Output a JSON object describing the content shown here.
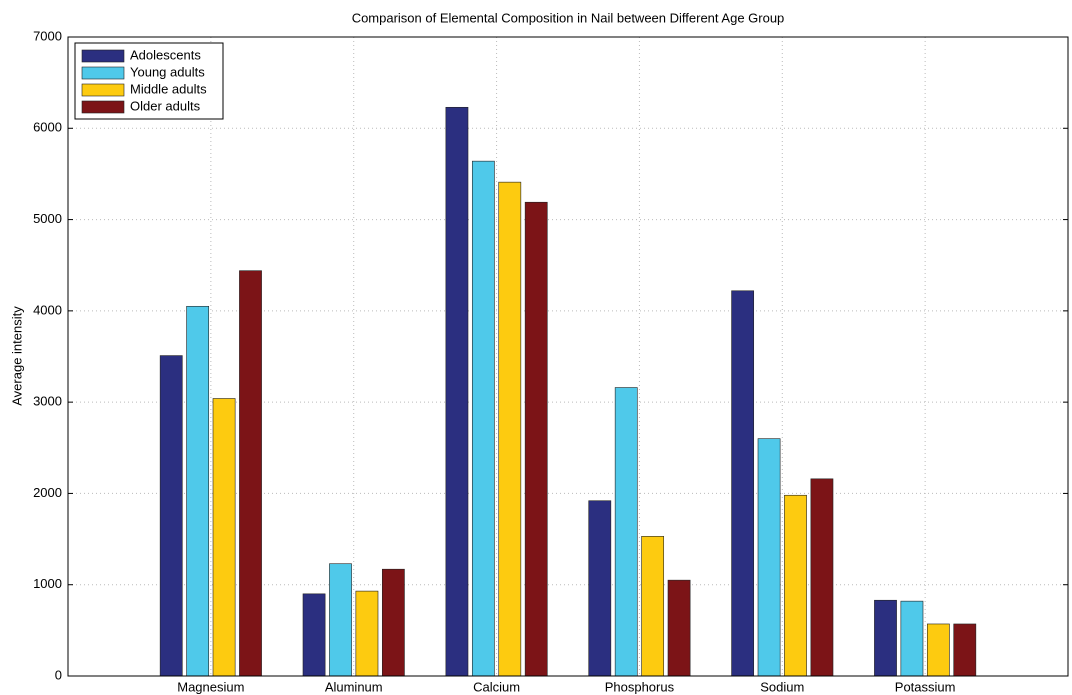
{
  "chart_data": {
    "type": "bar",
    "title": "Comparison of Elemental Composition in Nail between Different Age Group",
    "y_label": "Average intensity",
    "categories": [
      "Magnesium",
      "Aluminum",
      "Calcium",
      "Phosphorus",
      "Sodium",
      "Potassium"
    ],
    "series": [
      {
        "name": "Adolescents",
        "color": "#2b2f80",
        "values": [
          3510,
          900,
          6230,
          1920,
          4220,
          830
        ]
      },
      {
        "name": "Young adults",
        "color": "#4fc9ea",
        "values": [
          4050,
          1230,
          5640,
          3160,
          2600,
          820
        ]
      },
      {
        "name": "Middle adults",
        "color": "#fdcb10",
        "values": [
          3040,
          930,
          5410,
          1530,
          1980,
          570
        ]
      },
      {
        "name": "Older adults",
        "color": "#7c1417",
        "values": [
          4440,
          1170,
          5190,
          1050,
          2160,
          570
        ]
      }
    ],
    "ylim": [
      0,
      7000
    ],
    "yticks": [
      0,
      1000,
      2000,
      3000,
      4000,
      5000,
      6000,
      7000
    ],
    "grid": true,
    "legend": "upper-left"
  }
}
